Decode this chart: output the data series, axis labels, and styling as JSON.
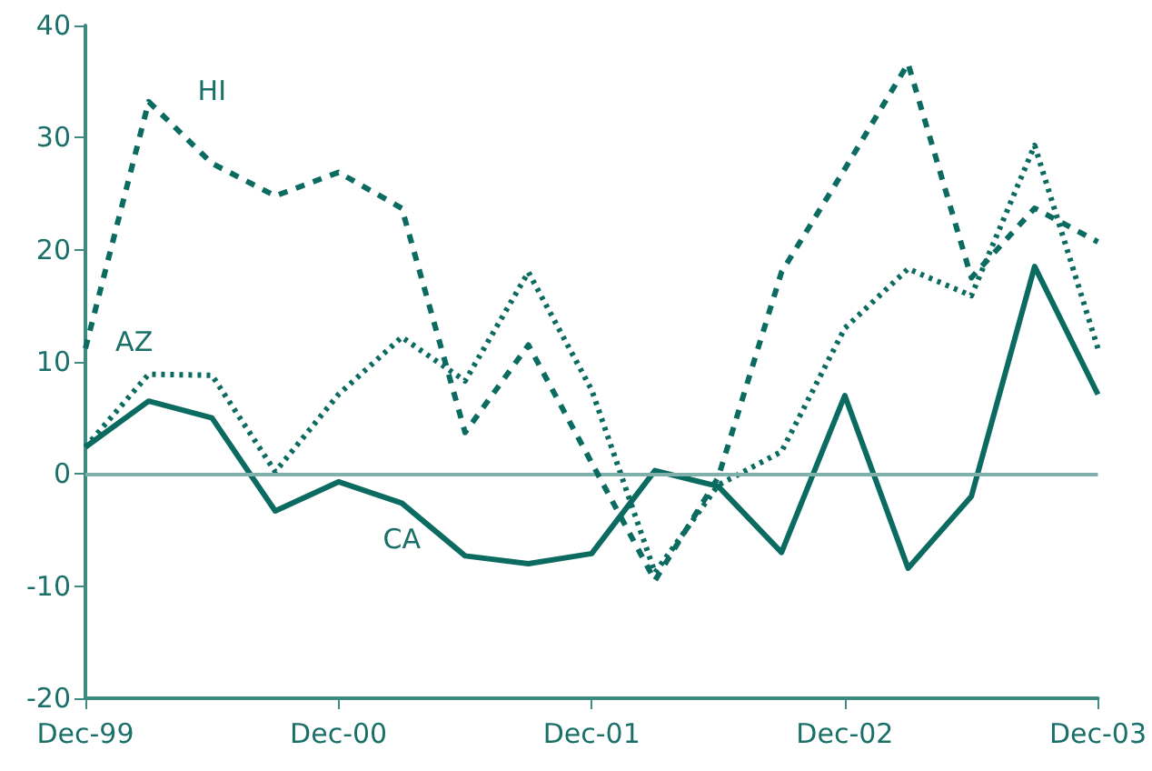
{
  "chart_data": {
    "type": "line",
    "categories": [
      "Dec-99",
      null,
      null,
      null,
      "Dec-00",
      null,
      null,
      null,
      "Dec-01",
      null,
      null,
      null,
      "Dec-02",
      null,
      null,
      null,
      "Dec-03"
    ],
    "series": [
      {
        "name": "HI",
        "color": "#0b6b60",
        "line_style": "dashed",
        "values": [
          11.2,
          33.2,
          27.7,
          24.8,
          26.9,
          23.7,
          3.7,
          11.5,
          1,
          -9.5,
          -0.3,
          18,
          27.2,
          36.6,
          17.5,
          23.7,
          20.7
        ]
      },
      {
        "name": "AZ",
        "color": "#0b6b60",
        "line_style": "dotted",
        "values": [
          2.4,
          8.9,
          8.8,
          0.2,
          7.1,
          12.2,
          8.3,
          18,
          7.5,
          -8.8,
          -1,
          2,
          13,
          18.3,
          15.9,
          29.3,
          11.2
        ]
      },
      {
        "name": "CA",
        "color": "#0b6b60",
        "line_style": "solid",
        "values": [
          2.4,
          6.5,
          5,
          -3.3,
          -0.7,
          -2.6,
          -7.3,
          -8,
          -7.1,
          0.3,
          -1.1,
          -7,
          7,
          -8.4,
          -2,
          18.5,
          7.1
        ]
      }
    ],
    "ylim": [
      -20,
      40
    ],
    "yticks": [
      -20,
      -10,
      0,
      10,
      20,
      30,
      40
    ],
    "ref_lines": [
      {
        "axis": "y",
        "value": 0,
        "color": "#7fb0a9"
      }
    ],
    "grid": false,
    "legend": false,
    "marker": "none"
  }
}
